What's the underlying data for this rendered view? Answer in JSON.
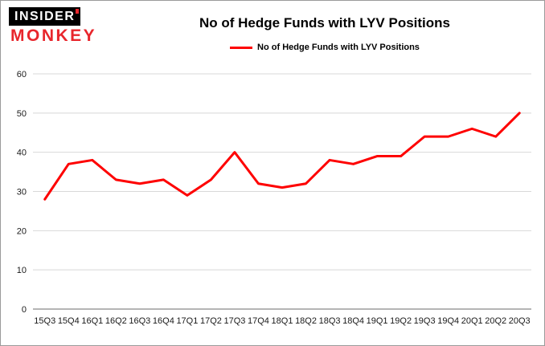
{
  "logo": {
    "line1": "INSIDER",
    "line2": "MONKEY"
  },
  "header": {
    "title": "No of Hedge Funds with LYV Positions"
  },
  "legend": {
    "label": "No of Hedge Funds with LYV Positions"
  },
  "colors": {
    "series_red": "#fe0000",
    "logo_red": "#e8262c",
    "grid_gray": "#d8d8d8"
  },
  "chart_data": {
    "type": "line",
    "title": "No of Hedge Funds with LYV Positions",
    "xlabel": "",
    "ylabel": "",
    "categories": [
      "15Q3",
      "15Q4",
      "16Q1",
      "16Q2",
      "16Q3",
      "16Q4",
      "17Q1",
      "17Q2",
      "17Q3",
      "17Q4",
      "18Q1",
      "18Q2",
      "18Q3",
      "18Q4",
      "19Q1",
      "19Q2",
      "19Q3",
      "19Q4",
      "20Q1",
      "20Q2",
      "20Q3"
    ],
    "values": [
      28,
      37,
      38,
      33,
      32,
      33,
      29,
      33,
      40,
      32,
      31,
      32,
      38,
      37,
      39,
      39,
      44,
      44,
      46,
      44,
      50
    ],
    "ylim": [
      0,
      60
    ],
    "yticks": [
      0,
      10,
      20,
      30,
      40,
      50,
      60
    ],
    "grid": true,
    "legend_position": "top",
    "line_color": "#fe0000"
  }
}
